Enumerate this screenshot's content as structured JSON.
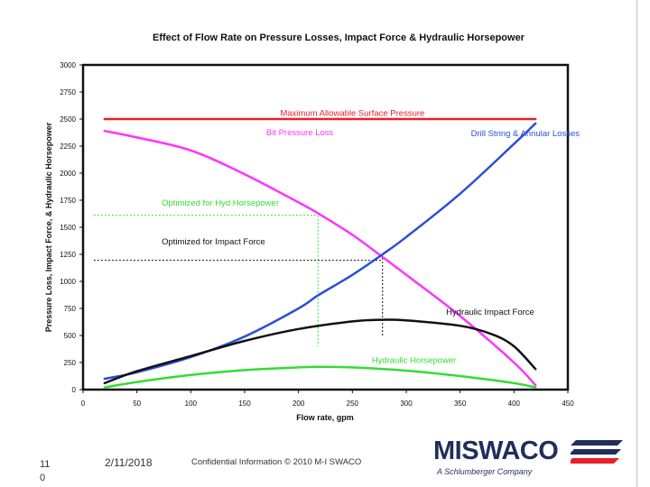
{
  "chart_data": {
    "type": "line",
    "title": "Effect of Flow Rate on Pressure Losses, Impact Force & Hydraulic Horsepower",
    "xlabel": "Flow rate, gpm",
    "ylabel": "Pressure Loss, Impact Force, & Hydraulic Horsepower",
    "xlim": [
      0,
      450
    ],
    "ylim": [
      0,
      3000
    ],
    "x_ticks": [
      0,
      50,
      100,
      150,
      200,
      250,
      300,
      350,
      400,
      450
    ],
    "y_ticks": [
      0,
      250,
      500,
      750,
      1000,
      1250,
      1500,
      1750,
      2000,
      2250,
      2500,
      2750,
      3000
    ],
    "grid": false,
    "series": [
      {
        "name": "Maximum Allowable Surface Pressure",
        "color": "#e8202a",
        "x": [
          20,
          420
        ],
        "y": [
          2500,
          2500
        ]
      },
      {
        "name": "Bit Pressure Loss",
        "color": "#ff33ff",
        "x": [
          20,
          50,
          100,
          150,
          200,
          218,
          250,
          280,
          300,
          350,
          400,
          420
        ],
        "y": [
          2390,
          2330,
          2210,
          1990,
          1730,
          1630,
          1430,
          1210,
          1060,
          680,
          250,
          40
        ]
      },
      {
        "name": "Drill String & Annular Losses",
        "color": "#2b4fd6",
        "x": [
          20,
          50,
          100,
          150,
          200,
          218,
          250,
          278,
          300,
          350,
          400,
          420
        ],
        "y": [
          100,
          160,
          300,
          490,
          750,
          870,
          1060,
          1250,
          1410,
          1810,
          2270,
          2460
        ]
      },
      {
        "name": "Hydraulic Impact Force",
        "color": "#111111",
        "x": [
          20,
          50,
          100,
          150,
          200,
          250,
          278,
          300,
          350,
          380,
          400,
          420
        ],
        "y": [
          60,
          170,
          310,
          450,
          560,
          630,
          645,
          640,
          590,
          510,
          400,
          190
        ]
      },
      {
        "name": "Hydraulic Horsepower",
        "color": "#33dd33",
        "x": [
          20,
          50,
          100,
          150,
          200,
          218,
          250,
          300,
          350,
          400,
          420
        ],
        "y": [
          20,
          70,
          135,
          180,
          205,
          210,
          205,
          175,
          125,
          60,
          20
        ]
      }
    ],
    "annotations": [
      {
        "text": "Maximum Allowable Surface Pressure",
        "color": "#e8202a",
        "x": 250,
        "y": 2530
      },
      {
        "text": "Bit Pressure Loss",
        "color": "#ff33ff",
        "x": 170,
        "y": 2350
      },
      {
        "text": "Drill String & Annular Losses",
        "color": "#2b4fd6",
        "x": 360,
        "y": 2340
      },
      {
        "text": "Optimized for Hyd Horsepower",
        "color": "#33dd33",
        "x": 73,
        "y": 1700
      },
      {
        "text": "Optimized for Impact Force",
        "color": "#111111",
        "x": 73,
        "y": 1340
      },
      {
        "text": "Hydraulic Impact Force",
        "color": "#111111",
        "x": 337,
        "y": 690
      },
      {
        "text": "Hydraulic Horsepower",
        "color": "#33dd33",
        "x": 268,
        "y": 245
      }
    ],
    "reference_lines": [
      {
        "color": "#33dd33",
        "x": [
          10,
          218
        ],
        "y": [
          1610,
          1610
        ]
      },
      {
        "color": "#33dd33",
        "x": [
          218,
          218
        ],
        "y": [
          1610,
          400
        ]
      },
      {
        "color": "#111111",
        "x": [
          10,
          278
        ],
        "y": [
          1195,
          1195
        ]
      },
      {
        "color": "#111111",
        "x": [
          278,
          278
        ],
        "y": [
          1250,
          500
        ]
      }
    ]
  },
  "footer": {
    "slide_number": "11\n0",
    "date": "2/11/2018",
    "confidential": "Confidential Information © 2010 M-I SWACO"
  },
  "logo": {
    "wordmark": "MISWACO",
    "subtitle": "A Schlumberger Company"
  }
}
